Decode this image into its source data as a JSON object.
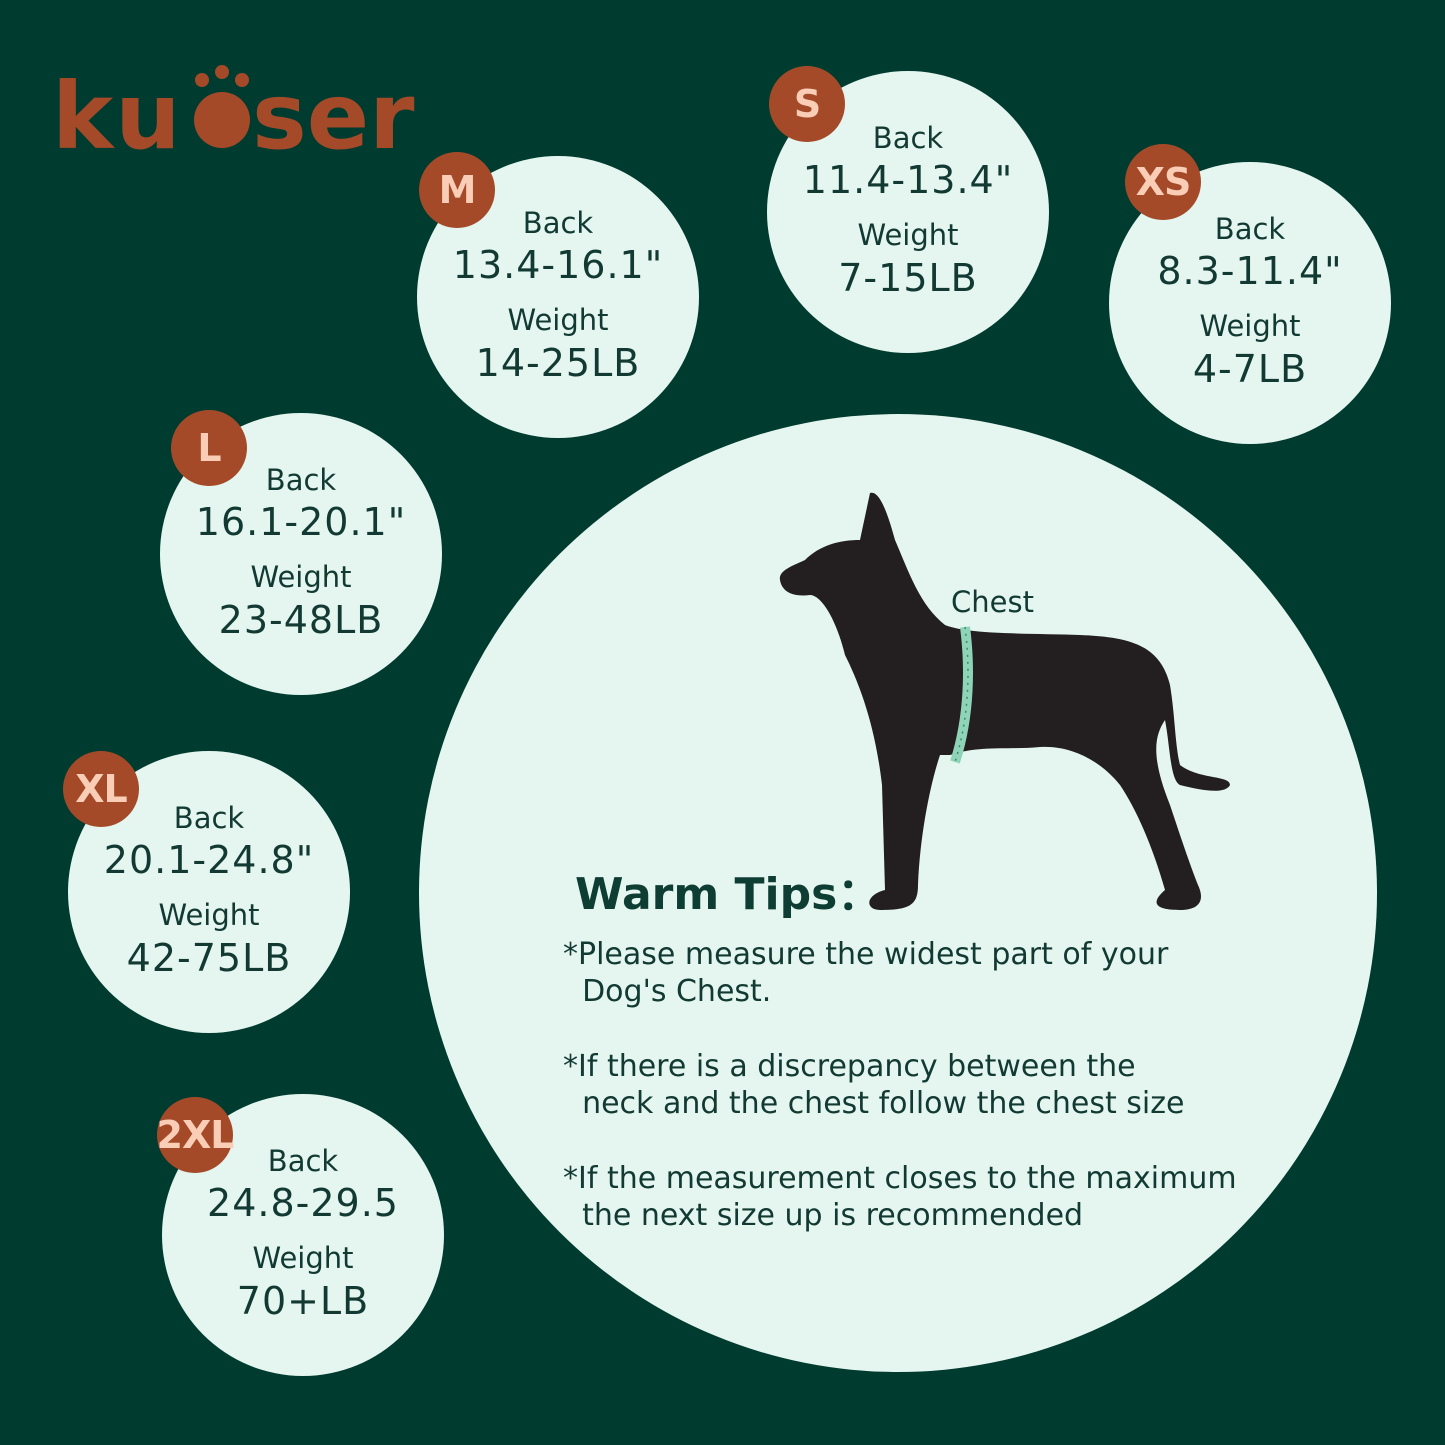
{
  "brand": {
    "logo_text": "kuoser",
    "color": "#a44a29"
  },
  "colors": {
    "background": "#003b30",
    "circle": "#e4f6ef",
    "badge": "#a44a29",
    "badge_text": "#f9cdb6"
  },
  "sizes": [
    {
      "size": "M",
      "back_label": "Back",
      "back": "13.4-16.1\"",
      "weight_label": "Weight",
      "weight": "14-25LB"
    },
    {
      "size": "S",
      "back_label": "Back",
      "back": "11.4-13.4\"",
      "weight_label": "Weight",
      "weight": "7-15LB"
    },
    {
      "size": "XS",
      "back_label": "Back",
      "back": "8.3-11.4\"",
      "weight_label": "Weight",
      "weight": "4-7LB"
    },
    {
      "size": "L",
      "back_label": "Back",
      "back": "16.1-20.1\"",
      "weight_label": "Weight",
      "weight": "23-48LB"
    },
    {
      "size": "XL",
      "back_label": "Back",
      "back": "20.1-24.8\"",
      "weight_label": "Weight",
      "weight": "42-75LB"
    },
    {
      "size": "2XL",
      "back_label": "Back",
      "back": "24.8-29.5",
      "weight_label": "Weight",
      "weight": "70+LB"
    }
  ],
  "diagram": {
    "chest_label": "Chest",
    "icon": "dog-silhouette-with-measuring-tape"
  },
  "tips": {
    "title": "Warm Tips：",
    "items": [
      "*Please measure the widest part of your\n  Dog's Chest.",
      "*If there is a discrepancy between the\n  neck and the chest follow the chest size",
      "*If the measurement closes to the maximum\n  the next size up is recommended"
    ]
  }
}
